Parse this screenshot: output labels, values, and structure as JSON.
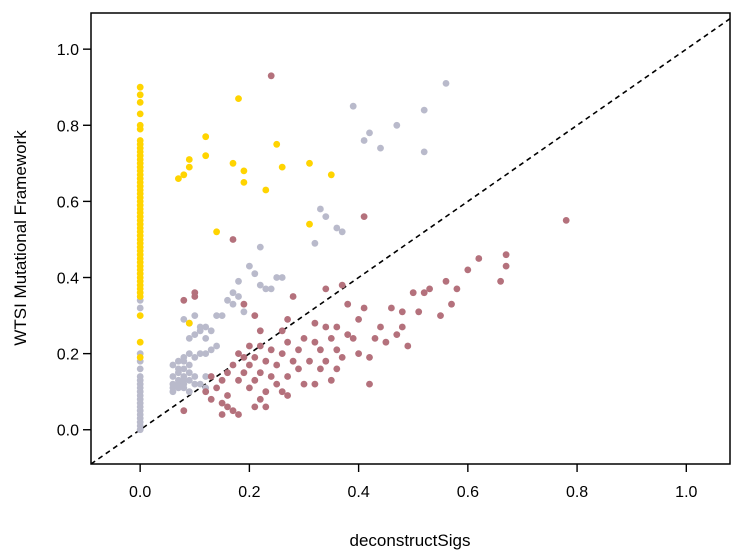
{
  "chart_data": {
    "type": "scatter",
    "title": "",
    "xlabel": "deconstructSigs",
    "ylabel": "WTSI Mutational Framework",
    "xlim": [
      -0.09,
      1.08
    ],
    "ylim": [
      -0.09,
      1.095
    ],
    "x_ticks": [
      "0.0",
      "0.2",
      "0.4",
      "0.6",
      "0.8",
      "1.0"
    ],
    "y_ticks": [
      "0.0",
      "0.2",
      "0.4",
      "0.6",
      "0.8",
      "1.0"
    ],
    "reference_line": {
      "type": "identity",
      "style": "dashed",
      "color": "#000000"
    },
    "grid": false,
    "legend": "none",
    "series": [
      {
        "color": "#B9BACB",
        "points": [
          [
            0.56,
            0.91
          ],
          [
            0.39,
            0.85
          ],
          [
            0.52,
            0.84
          ],
          [
            0.47,
            0.8
          ],
          [
            0.42,
            0.78
          ],
          [
            0.41,
            0.76
          ],
          [
            0.44,
            0.74
          ],
          [
            0.52,
            0.73
          ],
          [
            0.33,
            0.58
          ],
          [
            0.34,
            0.56
          ],
          [
            0.36,
            0.53
          ],
          [
            0.37,
            0.52
          ],
          [
            0.32,
            0.49
          ],
          [
            0.22,
            0.48
          ],
          [
            0.2,
            0.43
          ],
          [
            0.21,
            0.41
          ],
          [
            0.26,
            0.4
          ],
          [
            0.25,
            0.4
          ],
          [
            0.18,
            0.39
          ],
          [
            0.22,
            0.38
          ],
          [
            0.23,
            0.37
          ],
          [
            0.24,
            0.37
          ],
          [
            0.17,
            0.36
          ],
          [
            0.18,
            0.35
          ],
          [
            0.16,
            0.34
          ],
          [
            0.17,
            0.33
          ],
          [
            0.19,
            0.31
          ],
          [
            0.15,
            0.3
          ],
          [
            0.14,
            0.3
          ],
          [
            0.1,
            0.3
          ],
          [
            0.08,
            0.29
          ],
          [
            0.09,
            0.28
          ],
          [
            0.11,
            0.27
          ],
          [
            0.12,
            0.27
          ],
          [
            0.13,
            0.26
          ],
          [
            0.11,
            0.26
          ],
          [
            0.1,
            0.25
          ],
          [
            0.09,
            0.24
          ],
          [
            0.12,
            0.24
          ],
          [
            0.14,
            0.22
          ],
          [
            0.13,
            0.21
          ],
          [
            0.09,
            0.2
          ],
          [
            0.11,
            0.2
          ],
          [
            0.12,
            0.2
          ],
          [
            0.08,
            0.19
          ],
          [
            0.1,
            0.19
          ],
          [
            0.07,
            0.18
          ],
          [
            0.08,
            0.18
          ],
          [
            0.09,
            0.17
          ],
          [
            0.06,
            0.17
          ],
          [
            0.07,
            0.16
          ],
          [
            0.08,
            0.16
          ],
          [
            0.09,
            0.15
          ],
          [
            0.07,
            0.15
          ],
          [
            0.06,
            0.14
          ],
          [
            0.08,
            0.14
          ],
          [
            0.1,
            0.14
          ],
          [
            0.12,
            0.14
          ],
          [
            0.07,
            0.13
          ],
          [
            0.08,
            0.13
          ],
          [
            0.09,
            0.13
          ],
          [
            0.06,
            0.12
          ],
          [
            0.07,
            0.12
          ],
          [
            0.08,
            0.12
          ],
          [
            0.1,
            0.12
          ],
          [
            0.11,
            0.12
          ],
          [
            0.06,
            0.11
          ],
          [
            0.07,
            0.11
          ],
          [
            0.08,
            0.11
          ],
          [
            0.09,
            0.1
          ],
          [
            0.06,
            0.1
          ],
          [
            0.12,
            0.11
          ],
          [
            0.0,
            0.34
          ],
          [
            0.0,
            0.32
          ],
          [
            0.0,
            0.2
          ],
          [
            0.0,
            0.18
          ],
          [
            0.0,
            0.16
          ],
          [
            0.0,
            0.14
          ],
          [
            0.0,
            0.13
          ],
          [
            0.0,
            0.12
          ],
          [
            0.0,
            0.11
          ],
          [
            0.0,
            0.1
          ],
          [
            0.0,
            0.09
          ],
          [
            0.0,
            0.08
          ],
          [
            0.0,
            0.07
          ],
          [
            0.0,
            0.06
          ],
          [
            0.0,
            0.05
          ],
          [
            0.0,
            0.04
          ],
          [
            0.0,
            0.03
          ],
          [
            0.0,
            0.02
          ],
          [
            0.0,
            0.01
          ],
          [
            0.0,
            0.0
          ]
        ]
      },
      {
        "color": "#FFD400",
        "points": [
          [
            0.0,
            0.9
          ],
          [
            0.0,
            0.88
          ],
          [
            0.0,
            0.86
          ],
          [
            0.0,
            0.83
          ],
          [
            0.0,
            0.8
          ],
          [
            0.0,
            0.79
          ],
          [
            0.0,
            0.76
          ],
          [
            0.0,
            0.75
          ],
          [
            0.0,
            0.74
          ],
          [
            0.0,
            0.73
          ],
          [
            0.0,
            0.72
          ],
          [
            0.0,
            0.71
          ],
          [
            0.0,
            0.7
          ],
          [
            0.0,
            0.69
          ],
          [
            0.0,
            0.68
          ],
          [
            0.0,
            0.67
          ],
          [
            0.0,
            0.66
          ],
          [
            0.0,
            0.65
          ],
          [
            0.0,
            0.64
          ],
          [
            0.0,
            0.63
          ],
          [
            0.0,
            0.62
          ],
          [
            0.0,
            0.61
          ],
          [
            0.0,
            0.6
          ],
          [
            0.0,
            0.59
          ],
          [
            0.0,
            0.58
          ],
          [
            0.0,
            0.57
          ],
          [
            0.0,
            0.56
          ],
          [
            0.0,
            0.55
          ],
          [
            0.0,
            0.54
          ],
          [
            0.0,
            0.53
          ],
          [
            0.0,
            0.52
          ],
          [
            0.0,
            0.51
          ],
          [
            0.0,
            0.5
          ],
          [
            0.0,
            0.49
          ],
          [
            0.0,
            0.48
          ],
          [
            0.0,
            0.47
          ],
          [
            0.0,
            0.46
          ],
          [
            0.0,
            0.45
          ],
          [
            0.0,
            0.44
          ],
          [
            0.0,
            0.43
          ],
          [
            0.0,
            0.42
          ],
          [
            0.0,
            0.41
          ],
          [
            0.0,
            0.4
          ],
          [
            0.0,
            0.39
          ],
          [
            0.0,
            0.38
          ],
          [
            0.0,
            0.37
          ],
          [
            0.0,
            0.36
          ],
          [
            0.0,
            0.35
          ],
          [
            0.0,
            0.3
          ],
          [
            0.0,
            0.23
          ],
          [
            0.0,
            0.19
          ],
          [
            0.18,
            0.87
          ],
          [
            0.12,
            0.77
          ],
          [
            0.25,
            0.75
          ],
          [
            0.12,
            0.72
          ],
          [
            0.09,
            0.71
          ],
          [
            0.09,
            0.69
          ],
          [
            0.17,
            0.7
          ],
          [
            0.19,
            0.68
          ],
          [
            0.26,
            0.69
          ],
          [
            0.31,
            0.7
          ],
          [
            0.08,
            0.67
          ],
          [
            0.07,
            0.66
          ],
          [
            0.35,
            0.67
          ],
          [
            0.19,
            0.65
          ],
          [
            0.23,
            0.63
          ],
          [
            0.31,
            0.54
          ],
          [
            0.14,
            0.52
          ],
          [
            0.09,
            0.28
          ]
        ]
      },
      {
        "color": "#B4717C",
        "points": [
          [
            0.24,
            0.93
          ],
          [
            0.78,
            0.55
          ],
          [
            0.41,
            0.56
          ],
          [
            0.17,
            0.5
          ],
          [
            0.67,
            0.46
          ],
          [
            0.62,
            0.45
          ],
          [
            0.6,
            0.42
          ],
          [
            0.67,
            0.43
          ],
          [
            0.56,
            0.39
          ],
          [
            0.66,
            0.39
          ],
          [
            0.1,
            0.36
          ],
          [
            0.37,
            0.38
          ],
          [
            0.58,
            0.37
          ],
          [
            0.53,
            0.37
          ],
          [
            0.52,
            0.36
          ],
          [
            0.5,
            0.36
          ],
          [
            0.1,
            0.35
          ],
          [
            0.28,
            0.35
          ],
          [
            0.34,
            0.37
          ],
          [
            0.08,
            0.34
          ],
          [
            0.19,
            0.33
          ],
          [
            0.38,
            0.33
          ],
          [
            0.57,
            0.33
          ],
          [
            0.46,
            0.32
          ],
          [
            0.41,
            0.32
          ],
          [
            0.48,
            0.31
          ],
          [
            0.51,
            0.31
          ],
          [
            0.55,
            0.3
          ],
          [
            0.21,
            0.3
          ],
          [
            0.4,
            0.29
          ],
          [
            0.27,
            0.29
          ],
          [
            0.32,
            0.28
          ],
          [
            0.34,
            0.27
          ],
          [
            0.36,
            0.27
          ],
          [
            0.44,
            0.27
          ],
          [
            0.48,
            0.27
          ],
          [
            0.22,
            0.26
          ],
          [
            0.26,
            0.26
          ],
          [
            0.38,
            0.25
          ],
          [
            0.47,
            0.25
          ],
          [
            0.3,
            0.24
          ],
          [
            0.35,
            0.24
          ],
          [
            0.39,
            0.24
          ],
          [
            0.43,
            0.24
          ],
          [
            0.27,
            0.23
          ],
          [
            0.32,
            0.23
          ],
          [
            0.45,
            0.23
          ],
          [
            0.49,
            0.22
          ],
          [
            0.2,
            0.22
          ],
          [
            0.22,
            0.22
          ],
          [
            0.24,
            0.21
          ],
          [
            0.29,
            0.21
          ],
          [
            0.33,
            0.21
          ],
          [
            0.36,
            0.21
          ],
          [
            0.4,
            0.2
          ],
          [
            0.26,
            0.2
          ],
          [
            0.18,
            0.2
          ],
          [
            0.19,
            0.19
          ],
          [
            0.21,
            0.19
          ],
          [
            0.23,
            0.18
          ],
          [
            0.28,
            0.18
          ],
          [
            0.31,
            0.18
          ],
          [
            0.34,
            0.18
          ],
          [
            0.37,
            0.19
          ],
          [
            0.42,
            0.19
          ],
          [
            0.17,
            0.17
          ],
          [
            0.2,
            0.17
          ],
          [
            0.25,
            0.17
          ],
          [
            0.29,
            0.16
          ],
          [
            0.33,
            0.16
          ],
          [
            0.36,
            0.16
          ],
          [
            0.16,
            0.15
          ],
          [
            0.19,
            0.15
          ],
          [
            0.22,
            0.15
          ],
          [
            0.27,
            0.14
          ],
          [
            0.24,
            0.14
          ],
          [
            0.13,
            0.14
          ],
          [
            0.15,
            0.13
          ],
          [
            0.18,
            0.13
          ],
          [
            0.21,
            0.13
          ],
          [
            0.25,
            0.12
          ],
          [
            0.3,
            0.12
          ],
          [
            0.32,
            0.12
          ],
          [
            0.35,
            0.13
          ],
          [
            0.42,
            0.12
          ],
          [
            0.14,
            0.11
          ],
          [
            0.2,
            0.11
          ],
          [
            0.23,
            0.1
          ],
          [
            0.12,
            0.1
          ],
          [
            0.26,
            0.1
          ],
          [
            0.27,
            0.09
          ],
          [
            0.16,
            0.09
          ],
          [
            0.13,
            0.08
          ],
          [
            0.22,
            0.08
          ],
          [
            0.15,
            0.07
          ],
          [
            0.21,
            0.06
          ],
          [
            0.16,
            0.06
          ],
          [
            0.23,
            0.06
          ],
          [
            0.17,
            0.05
          ],
          [
            0.15,
            0.04
          ],
          [
            0.18,
            0.04
          ],
          [
            0.08,
            0.05
          ]
        ]
      }
    ]
  }
}
